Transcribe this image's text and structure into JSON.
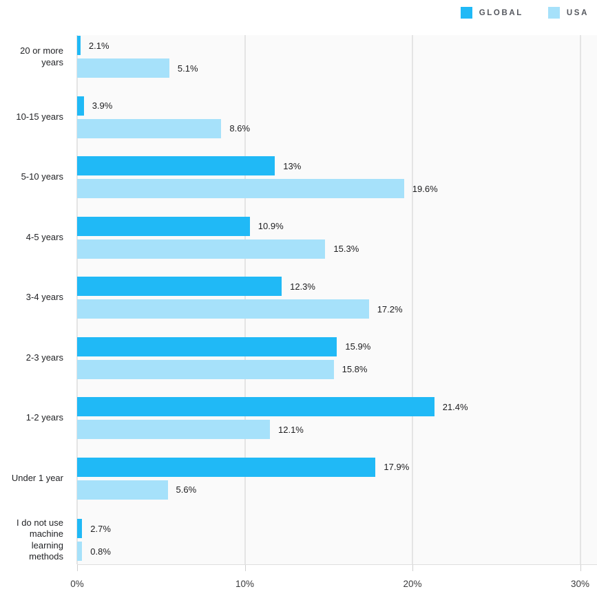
{
  "legend": {
    "items": [
      {
        "label": "GLOBAL",
        "color": "#20B9F6"
      },
      {
        "label": "USA",
        "color": "#A6E1FA"
      }
    ]
  },
  "chart_data": {
    "type": "bar",
    "orientation": "horizontal",
    "title": "",
    "xlabel": "",
    "ylabel": "",
    "xlim": [
      0,
      30
    ],
    "grid": "vertical",
    "legend_position": "top-right",
    "categories": [
      "20 or more years",
      "10-15 years",
      "5-10 years",
      "4-5 years",
      "3-4 years",
      "2-3 years",
      "1-2 years",
      "Under 1 year",
      "I do not use machine learning methods"
    ],
    "series": [
      {
        "name": "GLOBAL",
        "color": "#20B9F6",
        "values": [
          2.1,
          3.9,
          13,
          10.9,
          12.3,
          15.9,
          21.4,
          17.9,
          2.7
        ],
        "labels": [
          "2.1%",
          "3.9%",
          "13%",
          "10.9%",
          "12.3%",
          "15.9%",
          "21.4%",
          "17.9%",
          "2.7%"
        ],
        "drawn_pct": [
          0.2,
          0.4,
          11.8,
          10.3,
          12.2,
          15.5,
          21.3,
          17.8,
          0.3
        ]
      },
      {
        "name": "USA",
        "color": "#A6E1FA",
        "values": [
          5.1,
          8.6,
          19.6,
          15.3,
          17.2,
          15.8,
          12.1,
          5.6,
          0.8
        ],
        "labels": [
          "5.1%",
          "8.6%",
          "19.6%",
          "15.3%",
          "17.2%",
          "15.8%",
          "12.1%",
          "5.6%",
          "0.8%"
        ],
        "drawn_pct": [
          5.5,
          8.6,
          19.5,
          14.8,
          17.4,
          15.3,
          11.5,
          5.4,
          0.3
        ]
      }
    ],
    "x_ticks": [
      {
        "value": 0,
        "label": "0%"
      },
      {
        "value": 10,
        "label": "10%"
      },
      {
        "value": 20,
        "label": "20%"
      },
      {
        "value": 30,
        "label": "30%"
      }
    ]
  }
}
